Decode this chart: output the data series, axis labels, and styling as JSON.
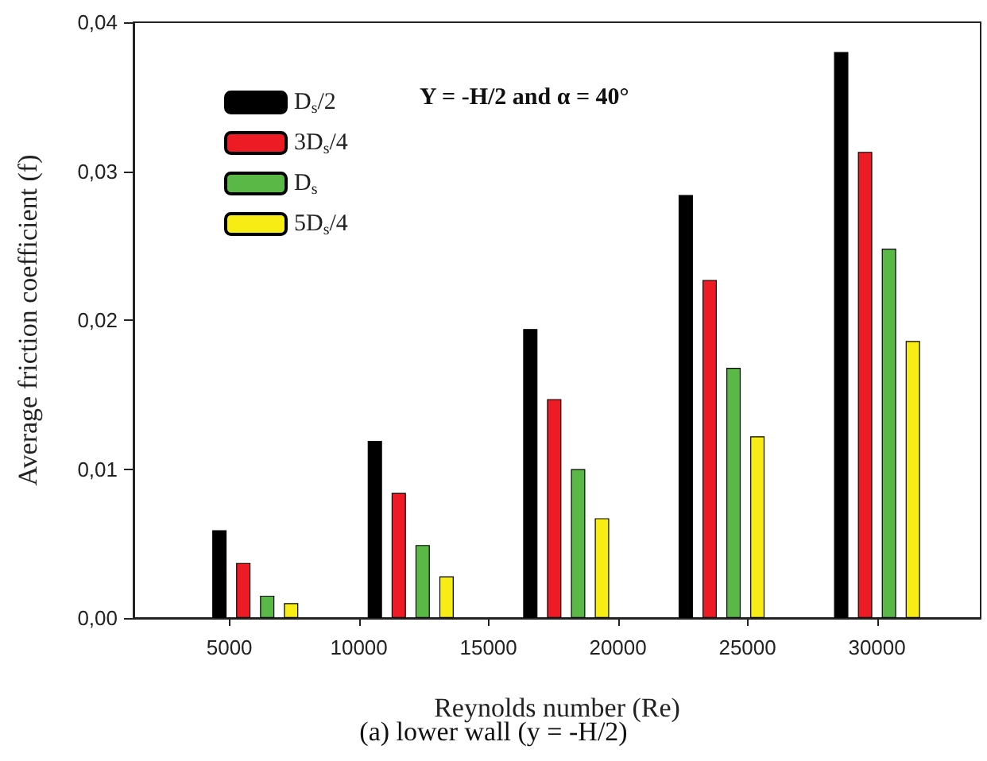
{
  "chart_data": {
    "type": "bar",
    "xlabel": "Reynolds number (Re)",
    "ylabel": "Average friction coefficient (f)",
    "annotations": [
      "Y = -H/2 and α = 40°",
      "(a) lower wall (y = -H/2)"
    ],
    "x": [
      6000,
      12000,
      18000,
      24000,
      30000
    ],
    "series": [
      {
        "name": "D$_{s}$/2",
        "color": "#000000",
        "values": [
          0.0059,
          0.0119,
          0.0194,
          0.0284,
          0.038
        ]
      },
      {
        "name": "3D$_{s}$/4",
        "color": "#ed1c24",
        "values": [
          0.0037,
          0.0084,
          0.0147,
          0.0227,
          0.0313
        ]
      },
      {
        "name": "D$_{s}$",
        "color": "#5ab946",
        "values": [
          0.0015,
          0.0049,
          0.01,
          0.0168,
          0.0248
        ]
      },
      {
        "name": "5D$_{s}$/4",
        "color": "#f7ec13",
        "values": [
          0.001,
          0.0028,
          0.0067,
          0.0122,
          0.0186
        ]
      }
    ],
    "xlim": [
      1300,
      34000
    ],
    "xticks": [
      5000,
      10000,
      15000,
      20000,
      25000,
      30000
    ],
    "ylim": [
      0,
      0.04
    ],
    "yticks": [
      {
        "value": 0,
        "label": "0,00"
      },
      {
        "value": 0.01,
        "label": "0,01"
      },
      {
        "value": 0.02,
        "label": "0,02"
      },
      {
        "value": 0.03,
        "label": "0,03"
      },
      {
        "value": 0.04,
        "label": "0,04"
      }
    ],
    "legend": "top left",
    "grid": false
  }
}
